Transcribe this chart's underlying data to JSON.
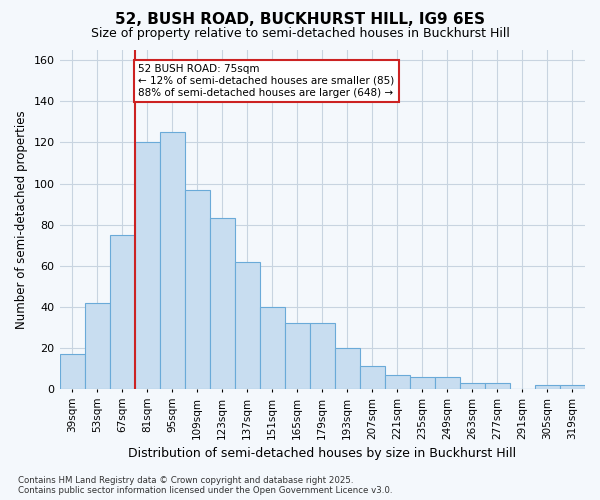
{
  "title1": "52, BUSH ROAD, BUCKHURST HILL, IG9 6ES",
  "title2": "Size of property relative to semi-detached houses in Buckhurst Hill",
  "xlabel": "Distribution of semi-detached houses by size in Buckhurst Hill",
  "ylabel": "Number of semi-detached properties",
  "categories": [
    "39sqm",
    "53sqm",
    "67sqm",
    "81sqm",
    "95sqm",
    "109sqm",
    "123sqm",
    "137sqm",
    "151sqm",
    "165sqm",
    "179sqm",
    "193sqm",
    "207sqm",
    "221sqm",
    "235sqm",
    "249sqm",
    "263sqm",
    "277sqm",
    "291sqm",
    "305sqm",
    "319sqm"
  ],
  "values": [
    17,
    42,
    75,
    120,
    125,
    97,
    83,
    62,
    40,
    32,
    32,
    20,
    11,
    7,
    6,
    6,
    3,
    3,
    0,
    2,
    2
  ],
  "bar_color": "#c8ddf0",
  "bar_edge_color": "#6aaad8",
  "grid_color": "#c8d4e0",
  "background_color": "#f4f8fc",
  "annotation_text": "52 BUSH ROAD: 75sqm\n← 12% of semi-detached houses are smaller (85)\n88% of semi-detached houses are larger (648) →",
  "vline_color": "#cc2222",
  "annotation_box_color": "#ffffff",
  "annotation_box_edge": "#cc2222",
  "footnote": "Contains HM Land Registry data © Crown copyright and database right 2025.\nContains public sector information licensed under the Open Government Licence v3.0.",
  "ylim": [
    0,
    165
  ],
  "yticks": [
    0,
    20,
    40,
    60,
    80,
    100,
    120,
    140,
    160
  ],
  "vline_pos": 2.5
}
